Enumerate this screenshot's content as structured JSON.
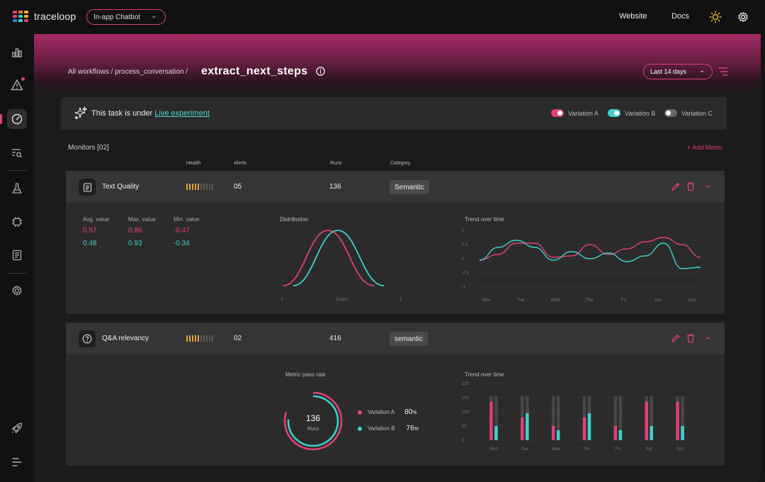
{
  "app": {
    "name": "traceloop",
    "selector": "In-app Chatbot"
  },
  "nav": {
    "website": "Website",
    "docs": "Docs"
  },
  "colors": {
    "accent": "#e0407a",
    "teal": "#3fd0cc",
    "health_on": "#e8a03a",
    "health_off": "#5a5a5a"
  },
  "sidebar": {
    "icons": [
      "bar-chart-icon",
      "alert-icon",
      "gauge-icon",
      "search-list-icon",
      "flask-icon",
      "chip-icon",
      "document-icon",
      "settings-icon",
      "rocket-icon",
      "menu-icon"
    ],
    "active": "gauge-icon"
  },
  "header": {
    "breadcrumb": "All workflows / process_conversation /",
    "title": "extract_next_steps",
    "range": "Last 14 days"
  },
  "experiment": {
    "prefix": "This task is under",
    "link": "Live experiment",
    "variations": [
      {
        "label": "Variation A",
        "color": "#e0407a",
        "on": true
      },
      {
        "label": "Variation B",
        "color": "#3fd0cc",
        "on": true
      },
      {
        "label": "Variation C",
        "color": "#6a6a6a",
        "on": false
      }
    ]
  },
  "monitors": {
    "title": "Monitors [02]",
    "add": "+ Add Metric",
    "columns": {
      "health": "Health",
      "alerts": "Alerts",
      "runs": "Runs",
      "category": "Category"
    },
    "items": [
      {
        "name": "Text Quality",
        "health": 0.5,
        "alerts": "05",
        "runs": "136",
        "category": "Semantic",
        "stats": {
          "labels": [
            "Avg. value",
            "Max. value",
            "Min. value"
          ],
          "a": [
            "0.57",
            "0.86",
            "-0.47"
          ],
          "b": [
            "0.48",
            "0.93",
            "-0.34"
          ]
        },
        "distribution": {
          "title": "Distribution",
          "x_labels": [
            "-1",
            "Gruen",
            "1"
          ]
        },
        "trend": {
          "title": "Trend over time",
          "y_labels": [
            "1",
            "0.5",
            "0",
            "-0.5",
            "-1"
          ],
          "x_labels": [
            "Mon",
            "Tue",
            "Wed",
            "Thu",
            "Fri",
            "Sat",
            "Sun"
          ]
        }
      },
      {
        "name": "Q&A relevancy",
        "health": 0.5,
        "alerts": "02",
        "runs": "416",
        "category": "semantic",
        "pass_rate": {
          "title": "Metric pass rate",
          "center_value": "136",
          "center_label": "Runs",
          "a_label": "Variation A",
          "a_value": "80",
          "b_label": "Variation B",
          "b_value": "76",
          "unit": "%"
        },
        "trend": {
          "title": "Trend over time",
          "y_labels": [
            "200",
            "150",
            "100",
            "50",
            "0"
          ],
          "x_labels": [
            "Mon",
            "Tue",
            "Wen",
            "Thu",
            "Fri",
            "Sat",
            "Sun"
          ]
        }
      }
    ]
  },
  "chart_data": [
    {
      "type": "line",
      "title": "Trend over time",
      "x": [
        "Mon",
        "",
        "Tue",
        "",
        "Wed",
        "",
        "Thu",
        "",
        "Fri",
        "",
        "Sat",
        "",
        "Sun"
      ],
      "ylim": [
        -1,
        1
      ],
      "series": [
        {
          "name": "Variation A",
          "values": [
            -0.05,
            0.15,
            0.55,
            0.55,
            0.05,
            0.1,
            0.5,
            0.15,
            0.35,
            0.6,
            0.75,
            0.5,
            0.05
          ]
        },
        {
          "name": "Variation B",
          "values": [
            -0.05,
            0.4,
            0.65,
            0.4,
            -0.05,
            0.25,
            0.0,
            0.2,
            -0.1,
            0.1,
            0.55,
            -0.35,
            -0.3
          ]
        }
      ]
    },
    {
      "type": "bar",
      "title": "Trend over time",
      "categories": [
        "Mon",
        "Tue",
        "Wen",
        "Thu",
        "Fri",
        "Sat",
        "Sun"
      ],
      "ylim": [
        0,
        200
      ],
      "series": [
        {
          "name": "Variation A",
          "values": [
            135,
            80,
            50,
            80,
            50,
            135,
            135
          ]
        },
        {
          "name": "Variation B",
          "values": [
            50,
            95,
            35,
            95,
            35,
            50,
            50
          ]
        }
      ]
    }
  ]
}
